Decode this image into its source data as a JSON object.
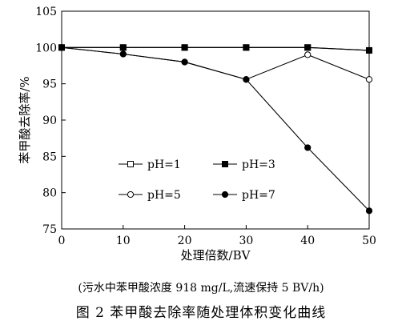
{
  "chart_data": {
    "type": "line",
    "xlabel": "处理倍数/BV",
    "ylabel": "苯甲酸去除率/%",
    "xlim": [
      0,
      50
    ],
    "ylim": [
      75,
      105
    ],
    "xticks": [
      0,
      10,
      20,
      30,
      40,
      50
    ],
    "yticks": [
      75,
      80,
      85,
      90,
      95,
      100,
      105
    ],
    "grid": false,
    "legend_position": "lower-left inside plot",
    "x": [
      0,
      10,
      20,
      30,
      40,
      50
    ],
    "series": [
      {
        "name": "pH=1",
        "marker": "open-square",
        "values": [
          100,
          100,
          100,
          100,
          100,
          99.6
        ]
      },
      {
        "name": "pH=3",
        "marker": "filled-square",
        "values": [
          100,
          100,
          100,
          100,
          100,
          99.6
        ]
      },
      {
        "name": "pH=5",
        "marker": "open-circle",
        "values": [
          100,
          99.1,
          98.0,
          95.6,
          99.0,
          95.6
        ]
      },
      {
        "name": "pH=7",
        "marker": "filled-circle",
        "values": [
          100,
          99.1,
          98.0,
          95.6,
          86.2,
          77.5
        ]
      }
    ]
  },
  "caption": {
    "note": "(污水中苯甲酸浓度 918 mg/L,流速保持 5 BV/h)",
    "title": "图 2  苯甲酸去除率随处理体积变化曲线"
  }
}
